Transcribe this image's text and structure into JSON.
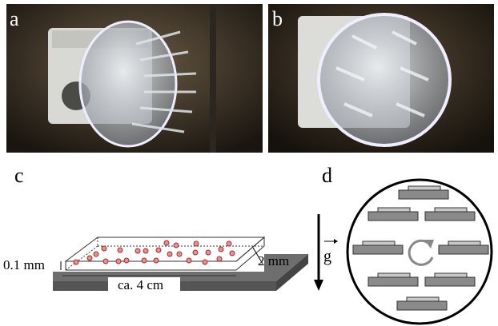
{
  "panels": [
    {
      "label": "a"
    },
    {
      "label": "b"
    },
    {
      "label": "c",
      "annotations": [
        "0.1 mm",
        "2 mm",
        "ca. 4 cm"
      ]
    },
    {
      "label": "d"
    }
  ],
  "gravity_label": "g"
}
